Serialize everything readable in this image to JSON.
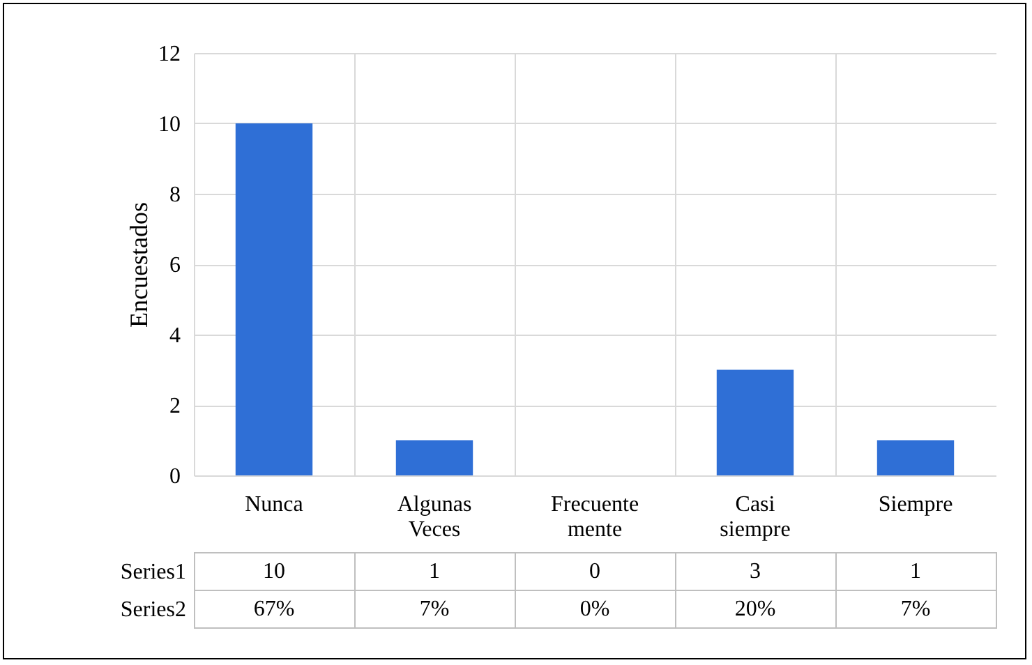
{
  "chart_data": {
    "type": "bar",
    "ylabel": "Encuestados",
    "categories": [
      "Nunca",
      "Algunas Veces",
      "Frecuente mente",
      "Casi siempre",
      "Siempre"
    ],
    "series": [
      {
        "name": "Series1",
        "color": "#2f6fd6",
        "values": [
          10,
          1,
          0,
          3,
          1
        ]
      },
      {
        "name": "Series2",
        "values": [
          null,
          null,
          null,
          null,
          null
        ],
        "value_labels": [
          "67%",
          "7%",
          "0%",
          "20%",
          "7%"
        ]
      }
    ],
    "ylim": [
      0,
      12
    ],
    "yticks": [
      0,
      2,
      4,
      6,
      8,
      10,
      12
    ],
    "grid": true,
    "data_labels": true
  }
}
